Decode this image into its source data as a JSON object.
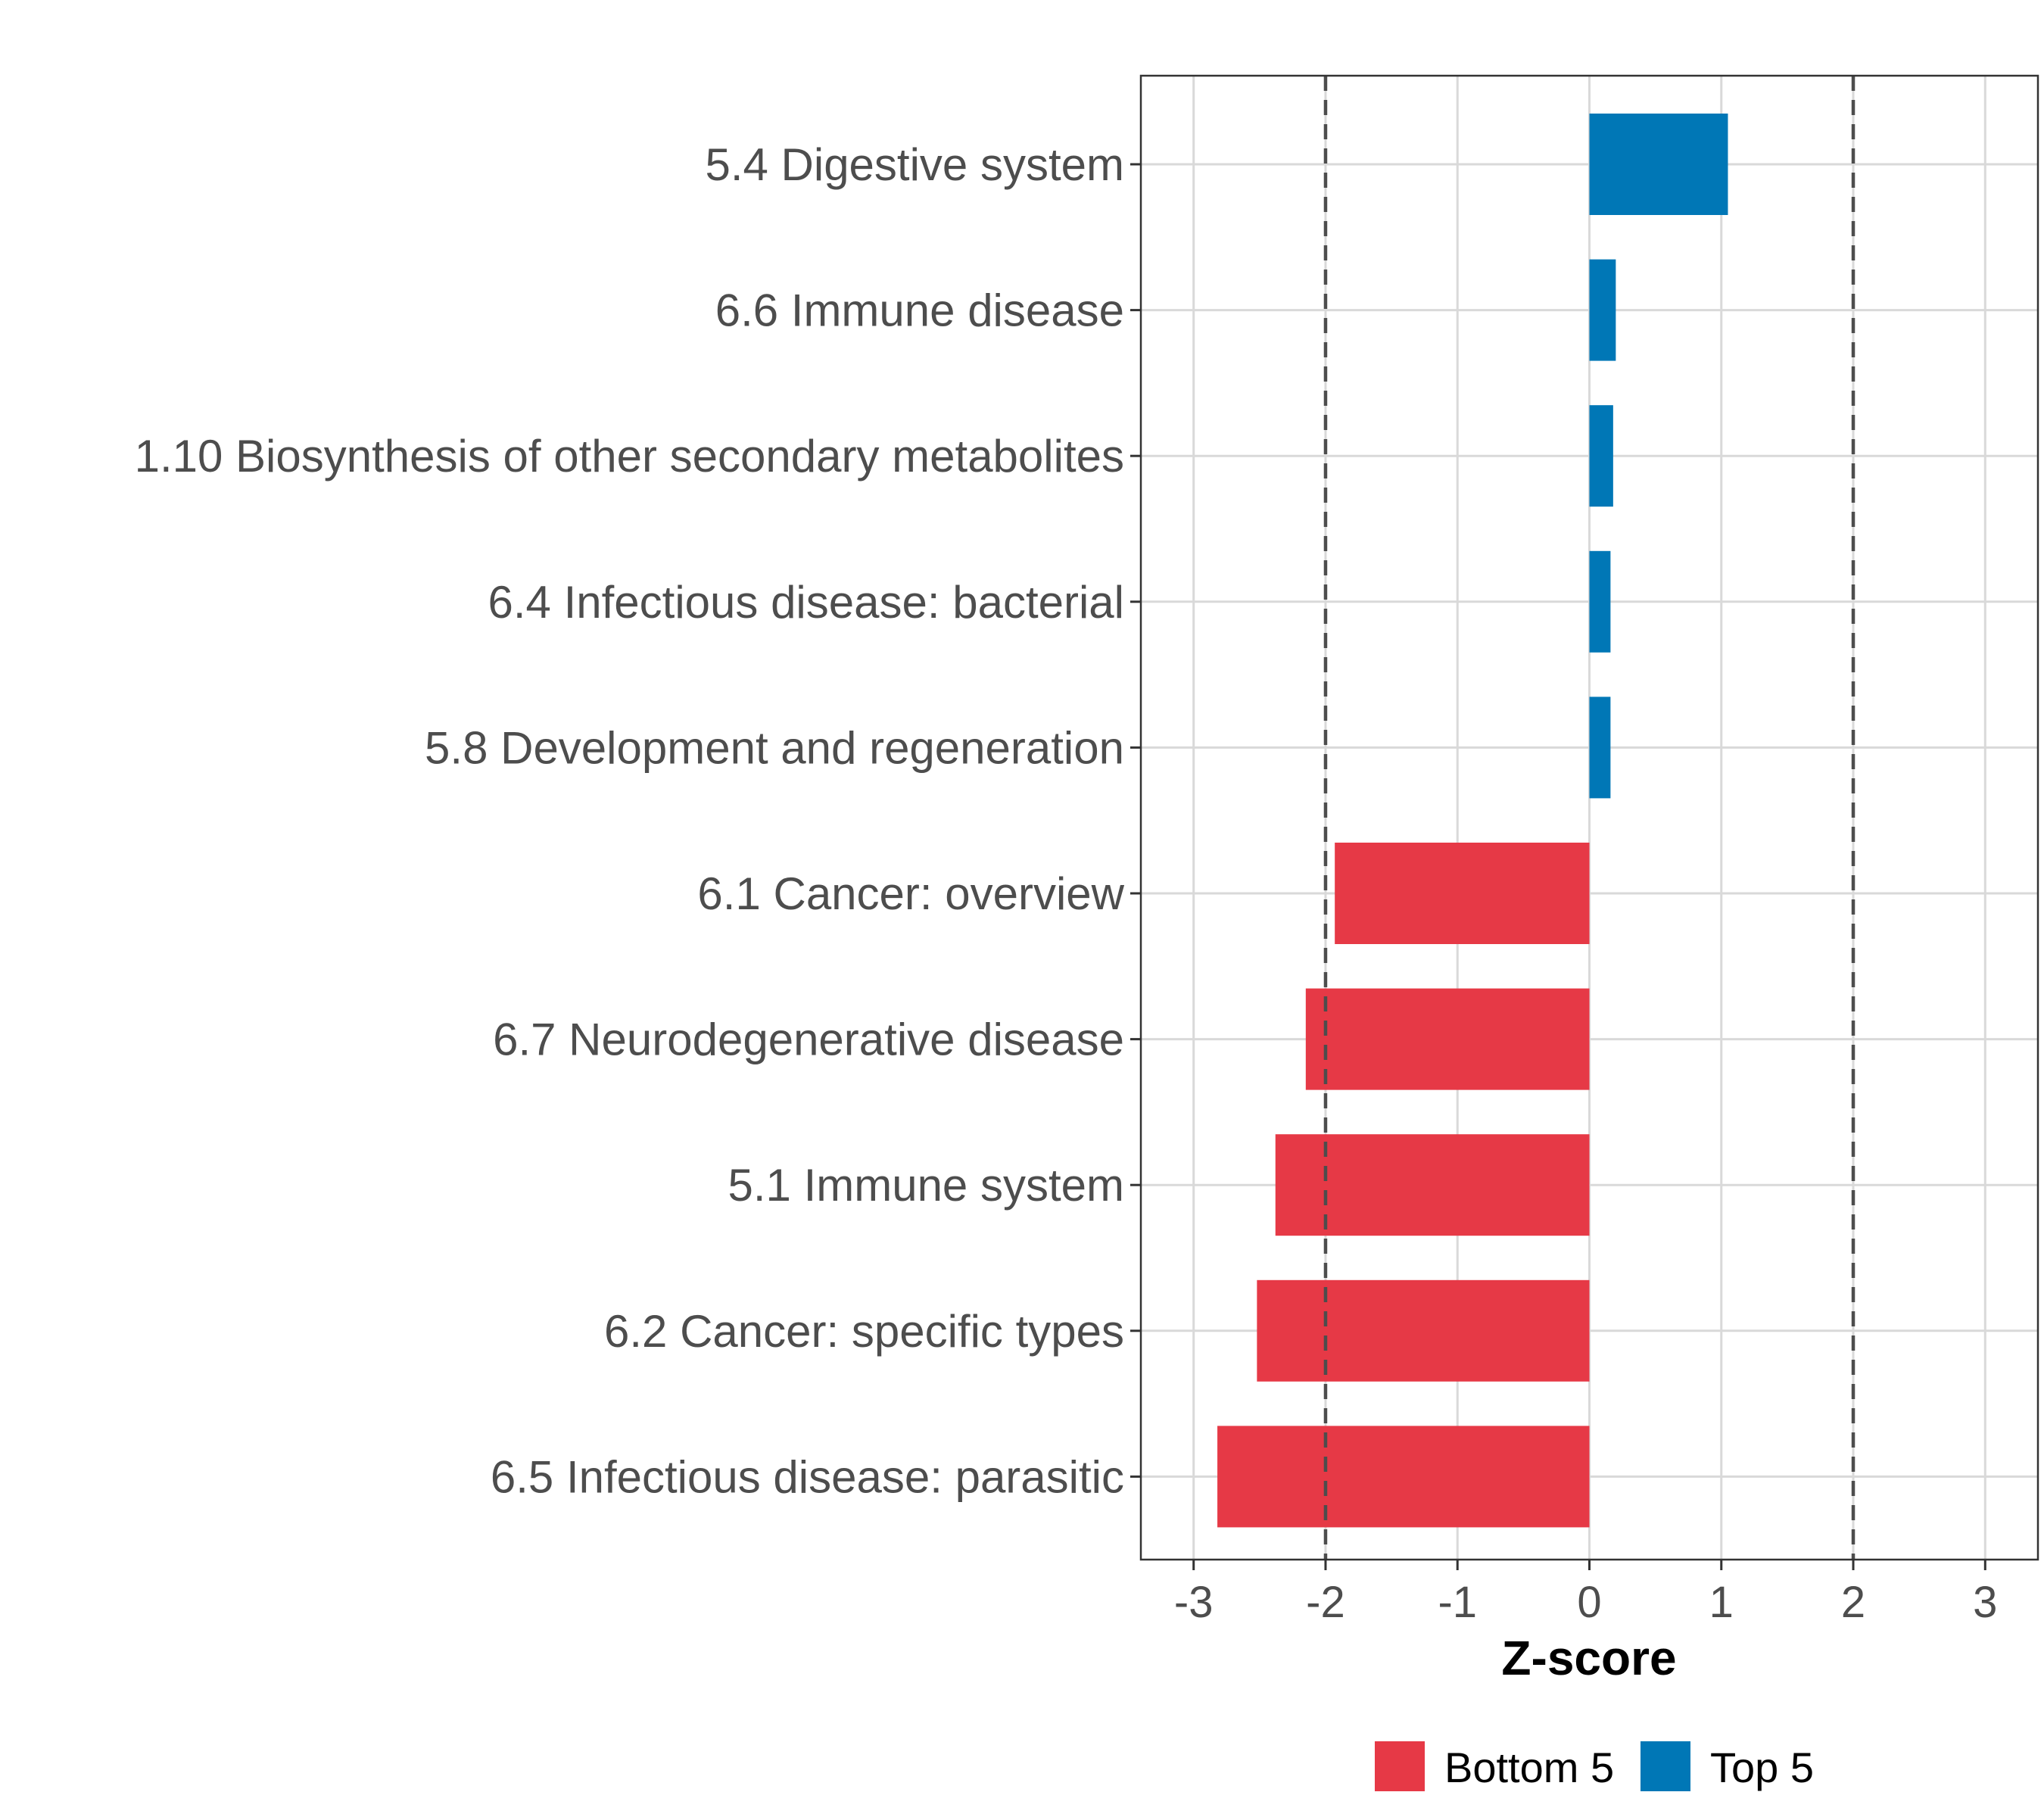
{
  "chart_data": {
    "type": "bar",
    "orientation": "horizontal",
    "title": "",
    "xlabel": "Z-score",
    "ylabel": "",
    "xlim": [
      -3.4,
      3.4
    ],
    "xticks": [
      -3,
      -2,
      -1,
      0,
      1,
      2,
      3
    ],
    "xtick_labels": [
      "-3",
      "-2",
      "-1",
      "0",
      "1",
      "2",
      "3"
    ],
    "reference_lines": [
      -2,
      2
    ],
    "grid": true,
    "legend_position": "bottom",
    "legend": [
      {
        "name": "Bottom 5",
        "color": "#e63946"
      },
      {
        "name": "Top 5",
        "color": "#0077b6"
      }
    ],
    "categories": [
      "5.4 Digestive system",
      "6.6 Immune disease",
      "1.10 Biosynthesis of other secondary metabolites",
      "6.4 Infectious disease: bacterial",
      "5.8 Development and regeneration",
      "6.1 Cancer: overview",
      "6.7 Neurodegenerative disease",
      "5.1 Immune system",
      "6.2 Cancer: specific types",
      "6.5 Infectious disease: parasitic"
    ],
    "values": [
      1.05,
      0.2,
      0.18,
      0.16,
      0.16,
      -1.93,
      -2.15,
      -2.38,
      -2.52,
      -2.82
    ],
    "groups": [
      "Top 5",
      "Top 5",
      "Top 5",
      "Top 5",
      "Top 5",
      "Bottom 5",
      "Bottom 5",
      "Bottom 5",
      "Bottom 5",
      "Bottom 5"
    ]
  },
  "colors": {
    "top": "#0077b6",
    "bottom": "#e63946",
    "grid": "#d9d9d9",
    "refline": "#4d4d4d"
  }
}
